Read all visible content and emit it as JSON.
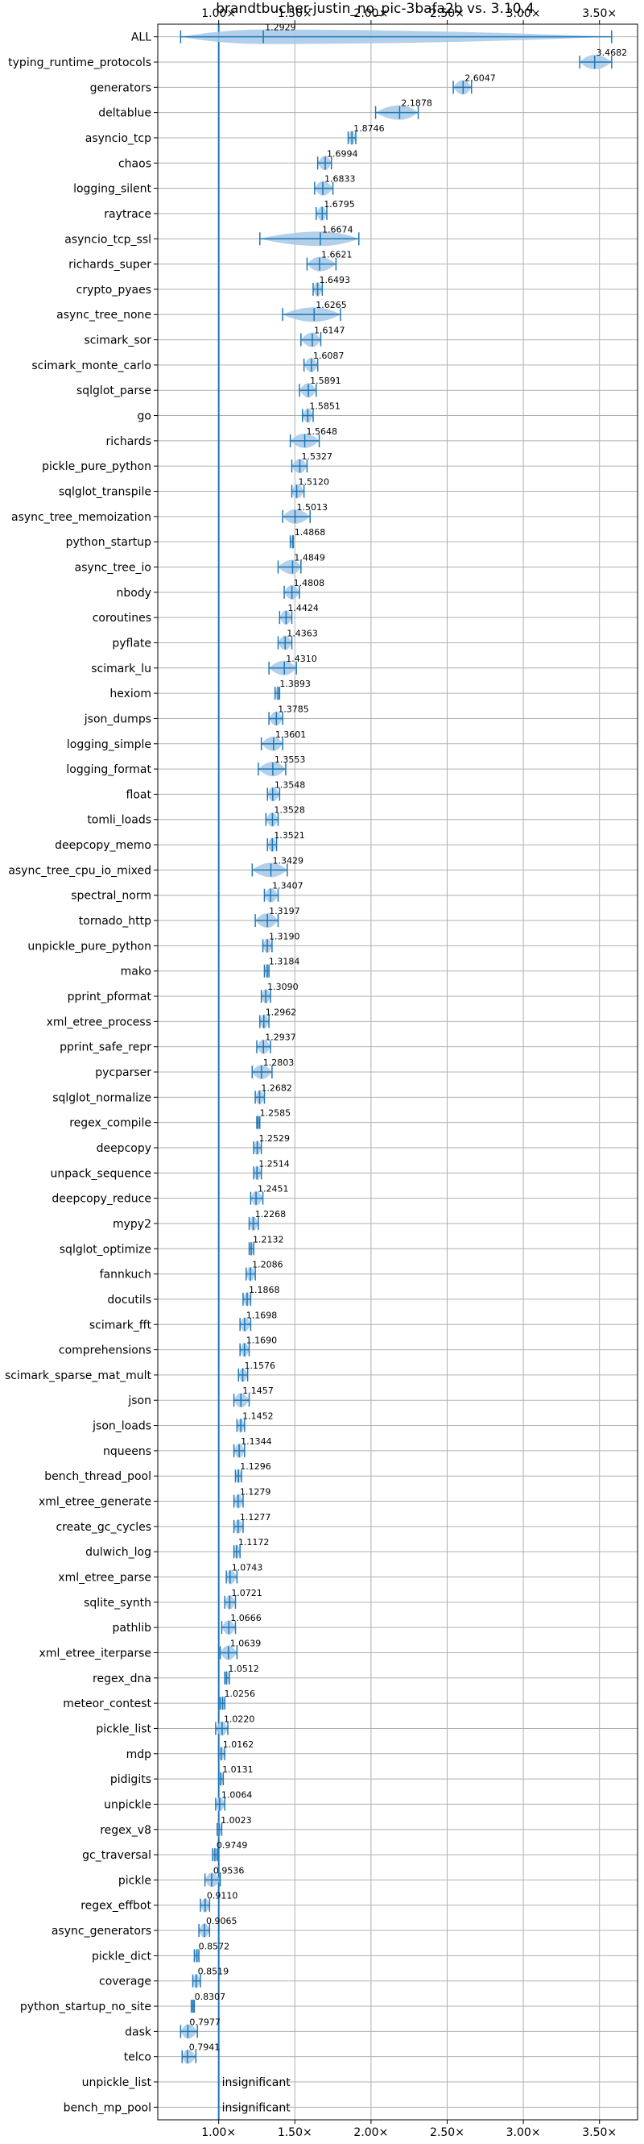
{
  "chart_data": {
    "type": "violin",
    "title": "brandtbucher-justin_no_pic-3bafa2b vs. 3.10.4",
    "x_ticks": [
      "1.00×",
      "1.50×",
      "2.00×",
      "2.50×",
      "3.00×",
      "3.50×"
    ],
    "x_tick_values": [
      1.0,
      1.5,
      2.0,
      2.5,
      3.0,
      3.5
    ],
    "xlim": [
      0.6,
      3.75
    ],
    "reference_line": 1.0,
    "grid": true,
    "colors": {
      "accent": "#1f77b4",
      "violin": "#a6c8e6",
      "grid": "#b0b0b0"
    },
    "insignificant_text": "insignificant",
    "categories": [
      "ALL",
      "typing_runtime_protocols",
      "generators",
      "deltablue",
      "asyncio_tcp",
      "chaos",
      "logging_silent",
      "raytrace",
      "asyncio_tcp_ssl",
      "richards_super",
      "crypto_pyaes",
      "async_tree_none",
      "scimark_sor",
      "scimark_monte_carlo",
      "sqlglot_parse",
      "go",
      "richards",
      "pickle_pure_python",
      "sqlglot_transpile",
      "async_tree_memoization",
      "python_startup",
      "async_tree_io",
      "nbody",
      "coroutines",
      "pyflate",
      "scimark_lu",
      "hexiom",
      "json_dumps",
      "logging_simple",
      "logging_format",
      "float",
      "tomli_loads",
      "deepcopy_memo",
      "async_tree_cpu_io_mixed",
      "spectral_norm",
      "tornado_http",
      "unpickle_pure_python",
      "mako",
      "pprint_pformat",
      "xml_etree_process",
      "pprint_safe_repr",
      "pycparser",
      "sqlglot_normalize",
      "regex_compile",
      "deepcopy",
      "unpack_sequence",
      "deepcopy_reduce",
      "mypy2",
      "sqlglot_optimize",
      "fannkuch",
      "docutils",
      "scimark_fft",
      "comprehensions",
      "scimark_sparse_mat_mult",
      "json",
      "json_loads",
      "nqueens",
      "bench_thread_pool",
      "xml_etree_generate",
      "create_gc_cycles",
      "dulwich_log",
      "xml_etree_parse",
      "sqlite_synth",
      "pathlib",
      "xml_etree_iterparse",
      "regex_dna",
      "meteor_contest",
      "pickle_list",
      "mdp",
      "pidigits",
      "unpickle",
      "regex_v8",
      "gc_traversal",
      "pickle",
      "regex_effbot",
      "async_generators",
      "pickle_dict",
      "coverage",
      "python_startup_no_site",
      "dask",
      "telco",
      "unpickle_list",
      "bench_mp_pool"
    ],
    "values": [
      1.2929,
      3.4682,
      2.6047,
      2.1878,
      1.8746,
      1.6994,
      1.6833,
      1.6795,
      1.6674,
      1.6621,
      1.6493,
      1.6265,
      1.6147,
      1.6087,
      1.5891,
      1.5851,
      1.5648,
      1.5327,
      1.512,
      1.5013,
      1.4868,
      1.4849,
      1.4808,
      1.4424,
      1.4363,
      1.431,
      1.3893,
      1.3785,
      1.3601,
      1.3553,
      1.3548,
      1.3528,
      1.3521,
      1.3429,
      1.3407,
      1.3197,
      1.319,
      1.3184,
      1.309,
      1.2962,
      1.2937,
      1.2803,
      1.2682,
      1.2585,
      1.2529,
      1.2514,
      1.2451,
      1.2268,
      1.2132,
      1.2086,
      1.1868,
      1.1698,
      1.169,
      1.1576,
      1.1457,
      1.1452,
      1.1344,
      1.1296,
      1.1279,
      1.1277,
      1.1172,
      1.0743,
      1.0721,
      1.0666,
      1.0639,
      1.0512,
      1.0256,
      1.022,
      1.0162,
      1.0131,
      1.0064,
      1.0023,
      0.9749,
      0.9536,
      0.911,
      0.9065,
      0.8572,
      0.8519,
      0.8307,
      0.7977,
      0.7941,
      null,
      null
    ],
    "value_labels": [
      "1.2929",
      "3.4682",
      "2.6047",
      "2.1878",
      "1.8746",
      "1.6994",
      "1.6833",
      "1.6795",
      "1.6674",
      "1.6621",
      "1.6493",
      "1.6265",
      "1.6147",
      "1.6087",
      "1.5891",
      "1.5851",
      "1.5648",
      "1.5327",
      "1.5120",
      "1.5013",
      "1.4868",
      "1.4849",
      "1.4808",
      "1.4424",
      "1.4363",
      "1.4310",
      "1.3893",
      "1.3785",
      "1.3601",
      "1.3553",
      "1.3548",
      "1.3528",
      "1.3521",
      "1.3429",
      "1.3407",
      "1.3197",
      "1.3190",
      "1.3184",
      "1.3090",
      "1.2962",
      "1.2937",
      "1.2803",
      "1.2682",
      "1.2585",
      "1.2529",
      "1.2514",
      "1.2451",
      "1.2268",
      "1.2132",
      "1.2086",
      "1.1868",
      "1.1698",
      "1.1690",
      "1.1576",
      "1.1457",
      "1.1452",
      "1.1344",
      "1.1296",
      "1.1279",
      "1.1277",
      "1.1172",
      "1.0743",
      "1.0721",
      "1.0666",
      "1.0639",
      "1.0512",
      "1.0256",
      "1.0220",
      "1.0162",
      "1.0131",
      "1.0064",
      "1.0023",
      "0.9749",
      "0.9536",
      "0.9110",
      "0.9065",
      "0.8572",
      "0.8519",
      "0.8307",
      "0.7977",
      "0.7941",
      "",
      ""
    ],
    "ranges": [
      [
        0.75,
        3.58
      ],
      [
        3.37,
        3.58
      ],
      [
        2.54,
        2.66
      ],
      [
        2.03,
        2.31
      ],
      [
        1.85,
        1.9
      ],
      [
        1.65,
        1.74
      ],
      [
        1.63,
        1.75
      ],
      [
        1.64,
        1.71
      ],
      [
        1.27,
        1.92
      ],
      [
        1.58,
        1.77
      ],
      [
        1.62,
        1.68
      ],
      [
        1.42,
        1.8
      ],
      [
        1.54,
        1.67
      ],
      [
        1.56,
        1.65
      ],
      [
        1.53,
        1.64
      ],
      [
        1.55,
        1.62
      ],
      [
        1.47,
        1.66
      ],
      [
        1.48,
        1.58
      ],
      [
        1.48,
        1.56
      ],
      [
        1.42,
        1.6
      ],
      [
        1.47,
        1.49
      ],
      [
        1.39,
        1.54
      ],
      [
        1.43,
        1.53
      ],
      [
        1.4,
        1.48
      ],
      [
        1.39,
        1.48
      ],
      [
        1.33,
        1.51
      ],
      [
        1.37,
        1.4
      ],
      [
        1.33,
        1.42
      ],
      [
        1.28,
        1.42
      ],
      [
        1.26,
        1.44
      ],
      [
        1.32,
        1.4
      ],
      [
        1.31,
        1.39
      ],
      [
        1.32,
        1.38
      ],
      [
        1.22,
        1.45
      ],
      [
        1.3,
        1.39
      ],
      [
        1.24,
        1.39
      ],
      [
        1.29,
        1.35
      ],
      [
        1.3,
        1.33
      ],
      [
        1.28,
        1.34
      ],
      [
        1.27,
        1.33
      ],
      [
        1.25,
        1.34
      ],
      [
        1.22,
        1.35
      ],
      [
        1.24,
        1.3
      ],
      [
        1.25,
        1.27
      ],
      [
        1.23,
        1.28
      ],
      [
        1.23,
        1.28
      ],
      [
        1.21,
        1.29
      ],
      [
        1.2,
        1.26
      ],
      [
        1.2,
        1.23
      ],
      [
        1.18,
        1.24
      ],
      [
        1.16,
        1.21
      ],
      [
        1.14,
        1.21
      ],
      [
        1.14,
        1.2
      ],
      [
        1.13,
        1.19
      ],
      [
        1.1,
        1.2
      ],
      [
        1.12,
        1.17
      ],
      [
        1.1,
        1.17
      ],
      [
        1.11,
        1.15
      ],
      [
        1.1,
        1.16
      ],
      [
        1.1,
        1.16
      ],
      [
        1.1,
        1.14
      ],
      [
        1.05,
        1.12
      ],
      [
        1.04,
        1.11
      ],
      [
        1.02,
        1.11
      ],
      [
        1.01,
        1.12
      ],
      [
        1.04,
        1.07
      ],
      [
        1.01,
        1.04
      ],
      [
        0.98,
        1.06
      ],
      [
        1.0,
        1.04
      ],
      [
        1.0,
        1.03
      ],
      [
        0.98,
        1.04
      ],
      [
        0.99,
        1.02
      ],
      [
        0.96,
        0.99
      ],
      [
        0.91,
        1.01
      ],
      [
        0.88,
        0.94
      ],
      [
        0.87,
        0.94
      ],
      [
        0.84,
        0.87
      ],
      [
        0.83,
        0.88
      ],
      [
        0.82,
        0.84
      ],
      [
        0.75,
        0.86
      ],
      [
        0.76,
        0.85
      ],
      null,
      null
    ]
  }
}
